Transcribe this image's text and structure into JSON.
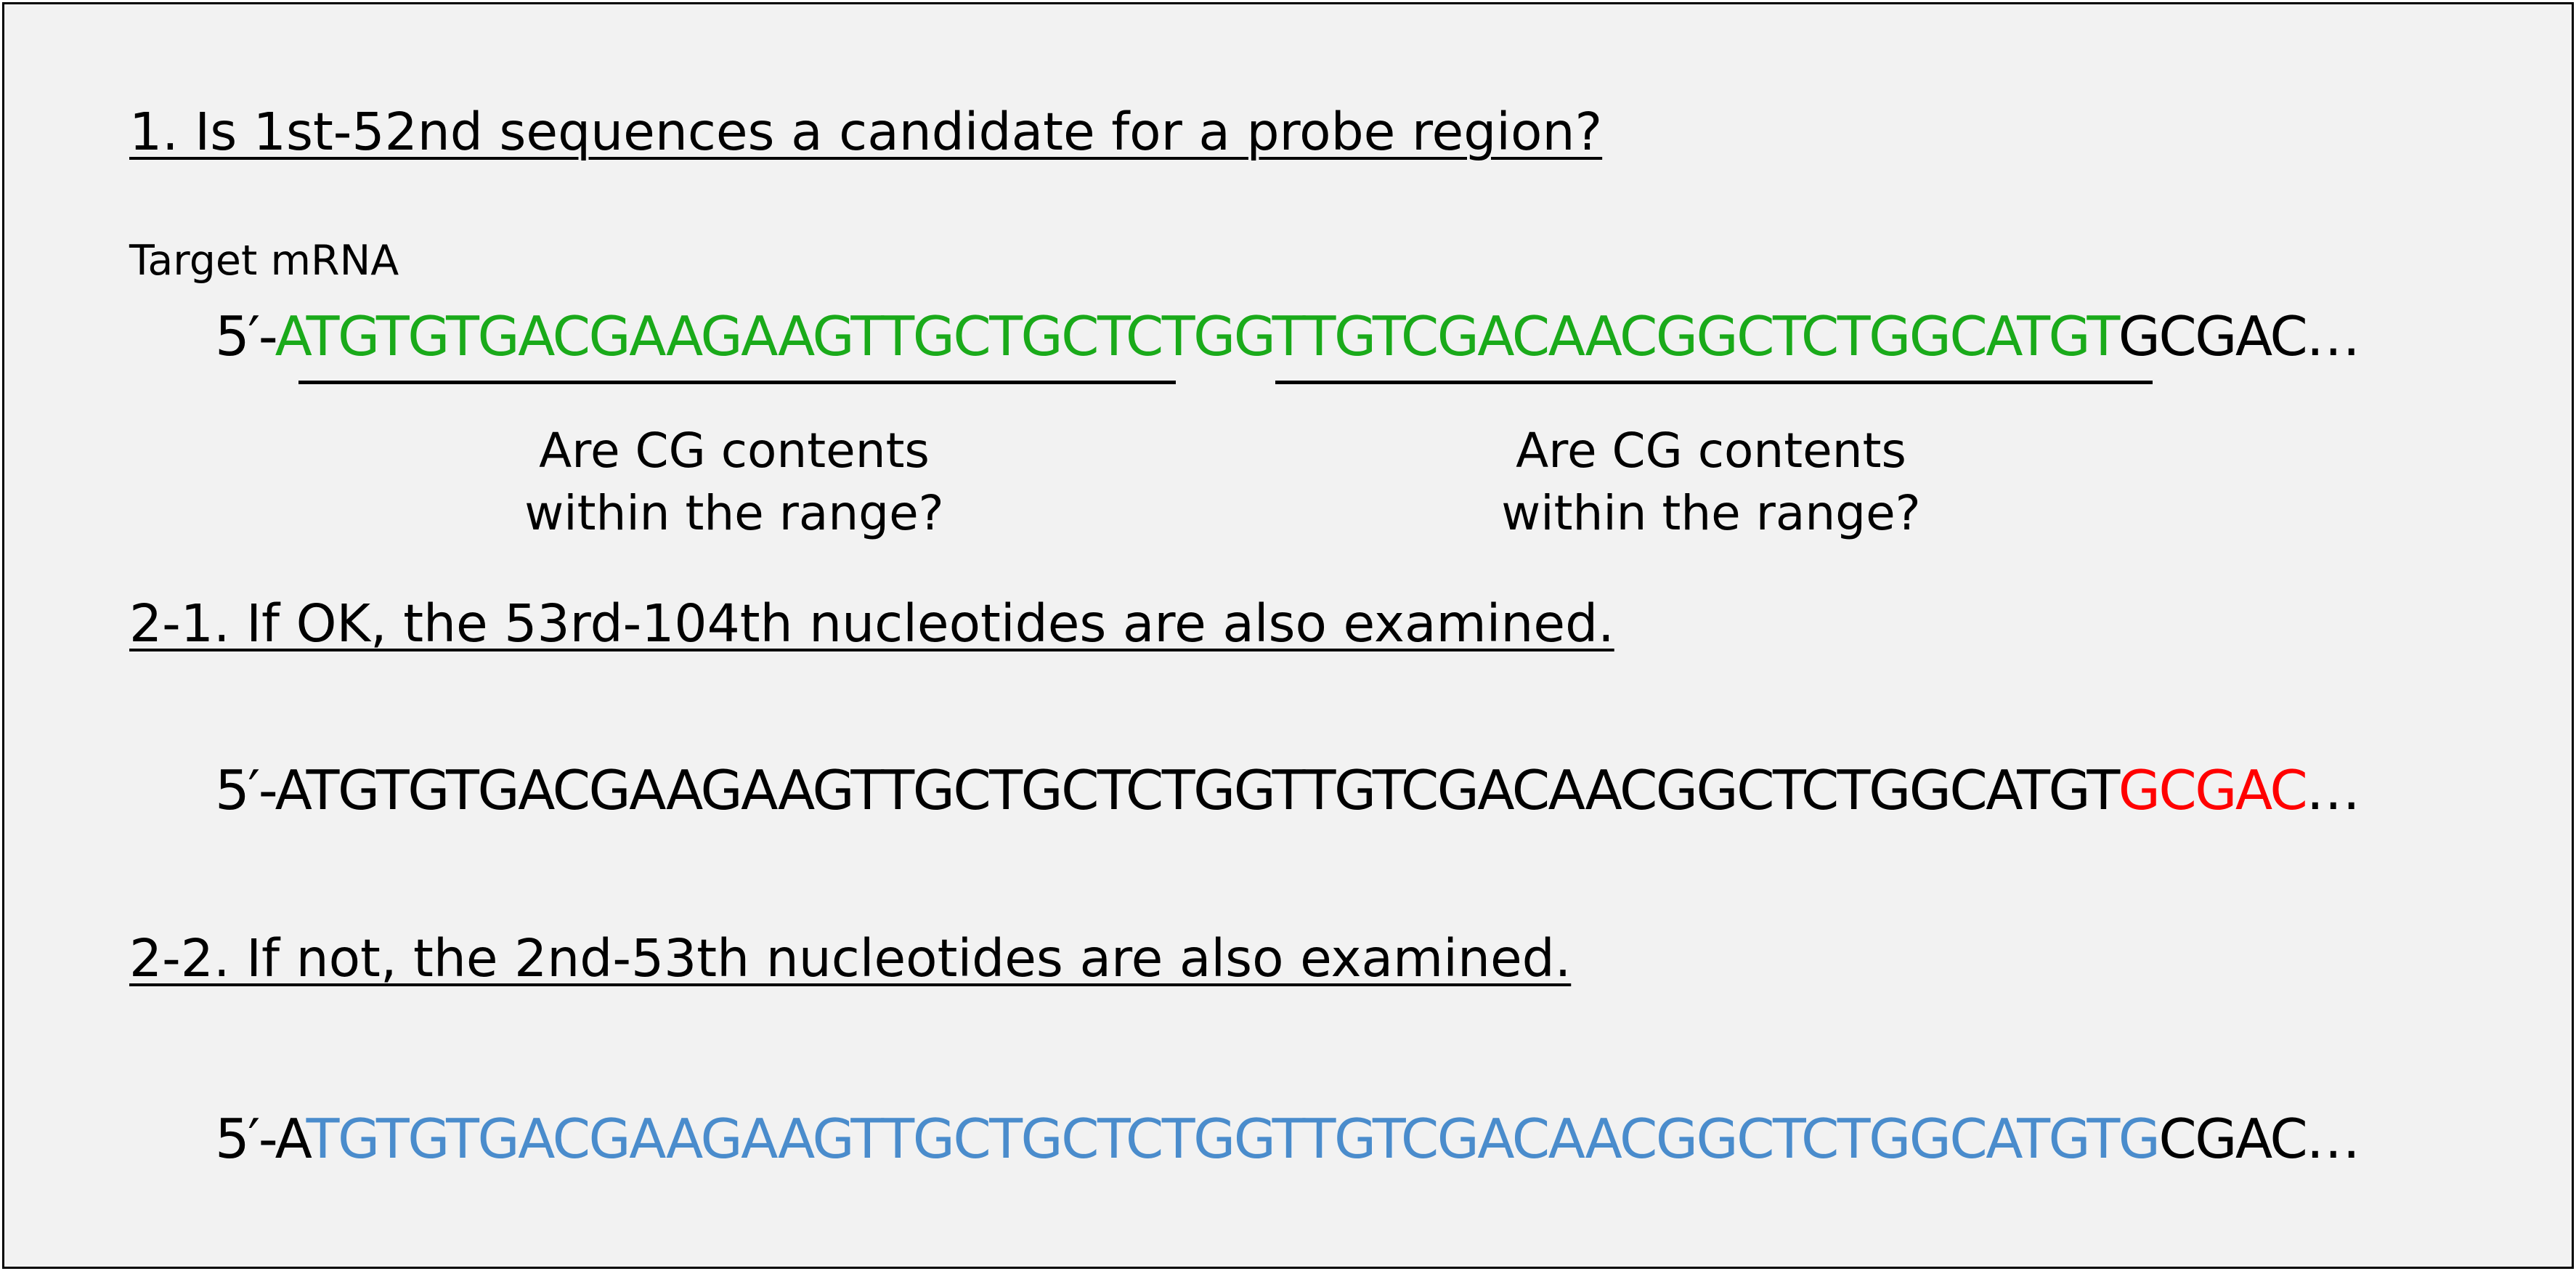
{
  "step1": {
    "heading": "1. Is 1st-52nd sequences a candidate for a probe region?",
    "target_label": "Target mRNA",
    "sequence": {
      "prefix": "5′-",
      "highlight": "ATGTGTGACGAAGAAGTTGCTGCTCTGGTTGTCGACAACGGCTCTGGCATGT",
      "rest": "GCGAC…"
    },
    "checks": [
      {
        "line1": "Are CG contents",
        "line2": "within the range?"
      },
      {
        "line1": "Are CG contents",
        "line2": "within the range?"
      }
    ]
  },
  "step2_1": {
    "heading": "2-1. If OK, the 53rd-104th nucleotides are also examined.",
    "sequence": {
      "prefix": "5′-",
      "plain": "ATGTGTGACGAAGAAGTTGCTGCTCTGGTTGTCGACAACGGCTCTGGCATGT",
      "highlight": "GCGAC",
      "rest": "…"
    }
  },
  "step2_2": {
    "heading": "2-2. If not, the 2nd-53th nucleotides are also examined.",
    "sequence": {
      "prefix": "5′-A",
      "highlight": "TGTGTGACGAAGAAGTTGCTGCTCTGGTTGTCGACAACGGCTCTGGCATGTG",
      "rest": "CGAC…"
    }
  },
  "colors": {
    "green": "#1aaa1a",
    "red": "#ff0000",
    "blue": "#4a8ccc",
    "background": "#f2f2f2",
    "border": "#000000"
  }
}
